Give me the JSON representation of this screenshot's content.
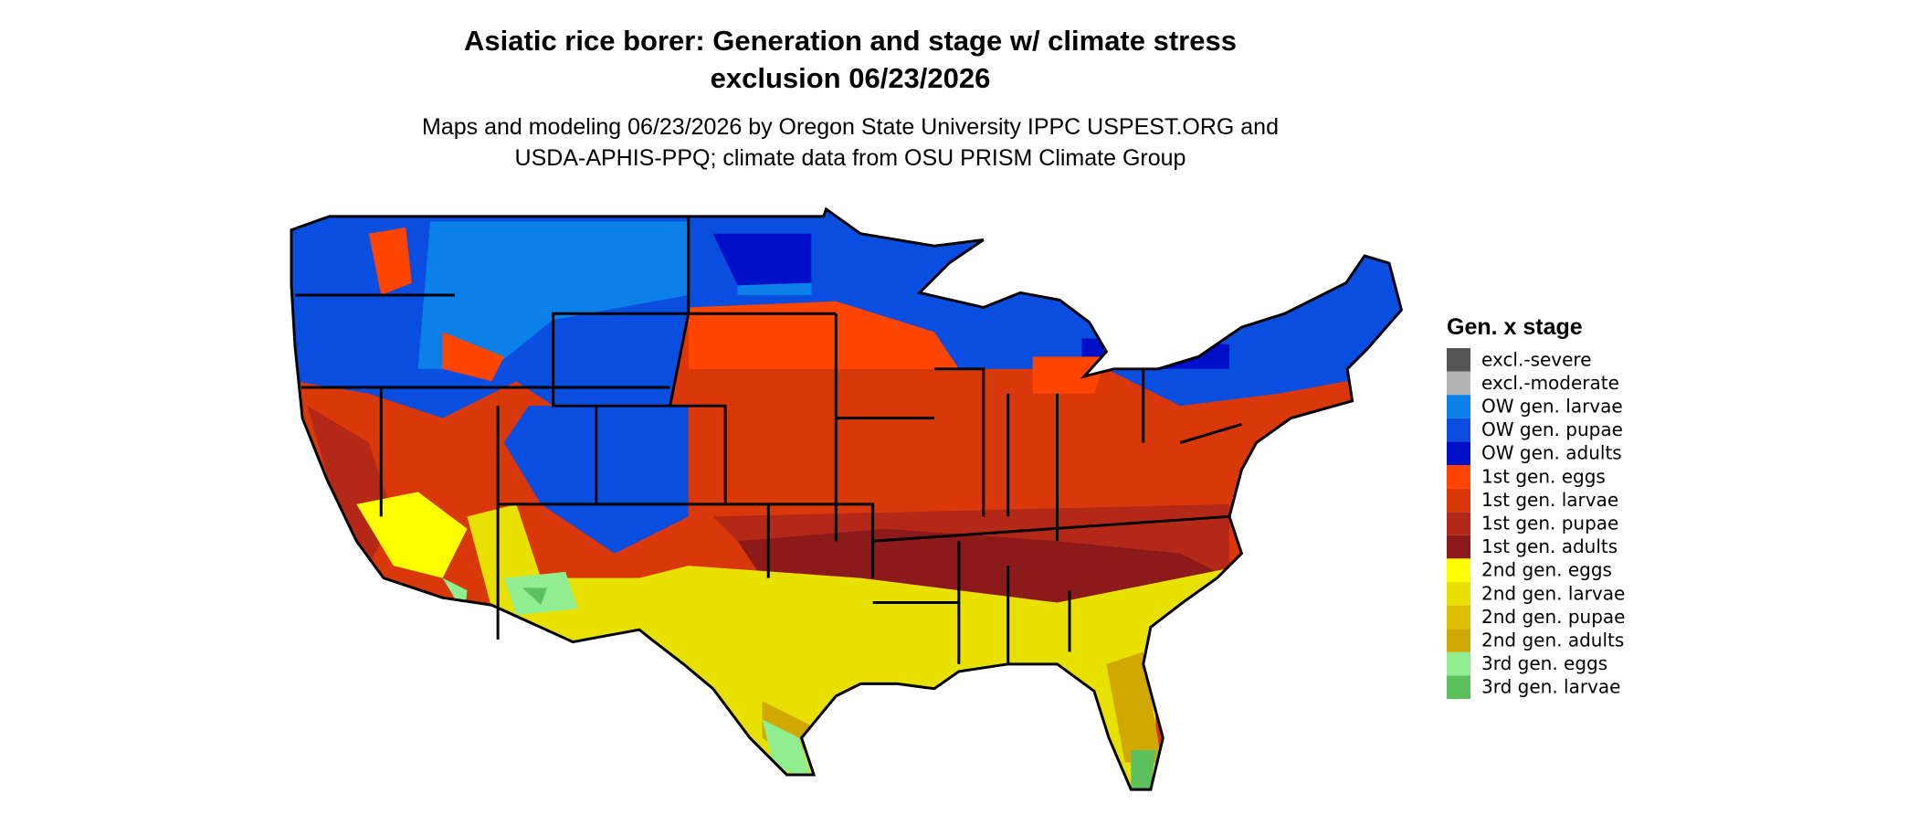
{
  "title_lines": [
    "Asiatic rice borer: Generation and stage w/ climate stress",
    "exclusion 06/23/2026"
  ],
  "subtitle_lines": [
    "Maps and modeling 06/23/2026 by Oregon State University IPPC USPEST.ORG and",
    "USDA-APHIS-PPQ; climate data from OSU PRISM Climate Group"
  ],
  "legend": {
    "title": "Gen. x stage",
    "items": [
      {
        "label": "excl.-severe",
        "color": "#555555"
      },
      {
        "label": "excl.-moderate",
        "color": "#b4b4b4"
      },
      {
        "label": "OW gen. larvae",
        "color": "#0a80e8"
      },
      {
        "label": "OW gen. pupae",
        "color": "#0a4ee0"
      },
      {
        "label": "OW gen. adults",
        "color": "#0010c8"
      },
      {
        "label": "1st gen. eggs",
        "color": "#ff4500"
      },
      {
        "label": "1st gen. larvae",
        "color": "#d8380a"
      },
      {
        "label": "1st gen. pupae",
        "color": "#b42818"
      },
      {
        "label": "1st gen. adults",
        "color": "#8c1a1a"
      },
      {
        "label": "2nd gen. eggs",
        "color": "#ffff00"
      },
      {
        "label": "2nd gen. larvae",
        "color": "#e8e000"
      },
      {
        "label": "2nd gen. pupae",
        "color": "#dcc000"
      },
      {
        "label": "2nd gen. adults",
        "color": "#d0a800"
      },
      {
        "label": "3rd gen. eggs",
        "color": "#90ee90"
      },
      {
        "label": "3rd gen. larvae",
        "color": "#5cc05c"
      }
    ]
  }
}
